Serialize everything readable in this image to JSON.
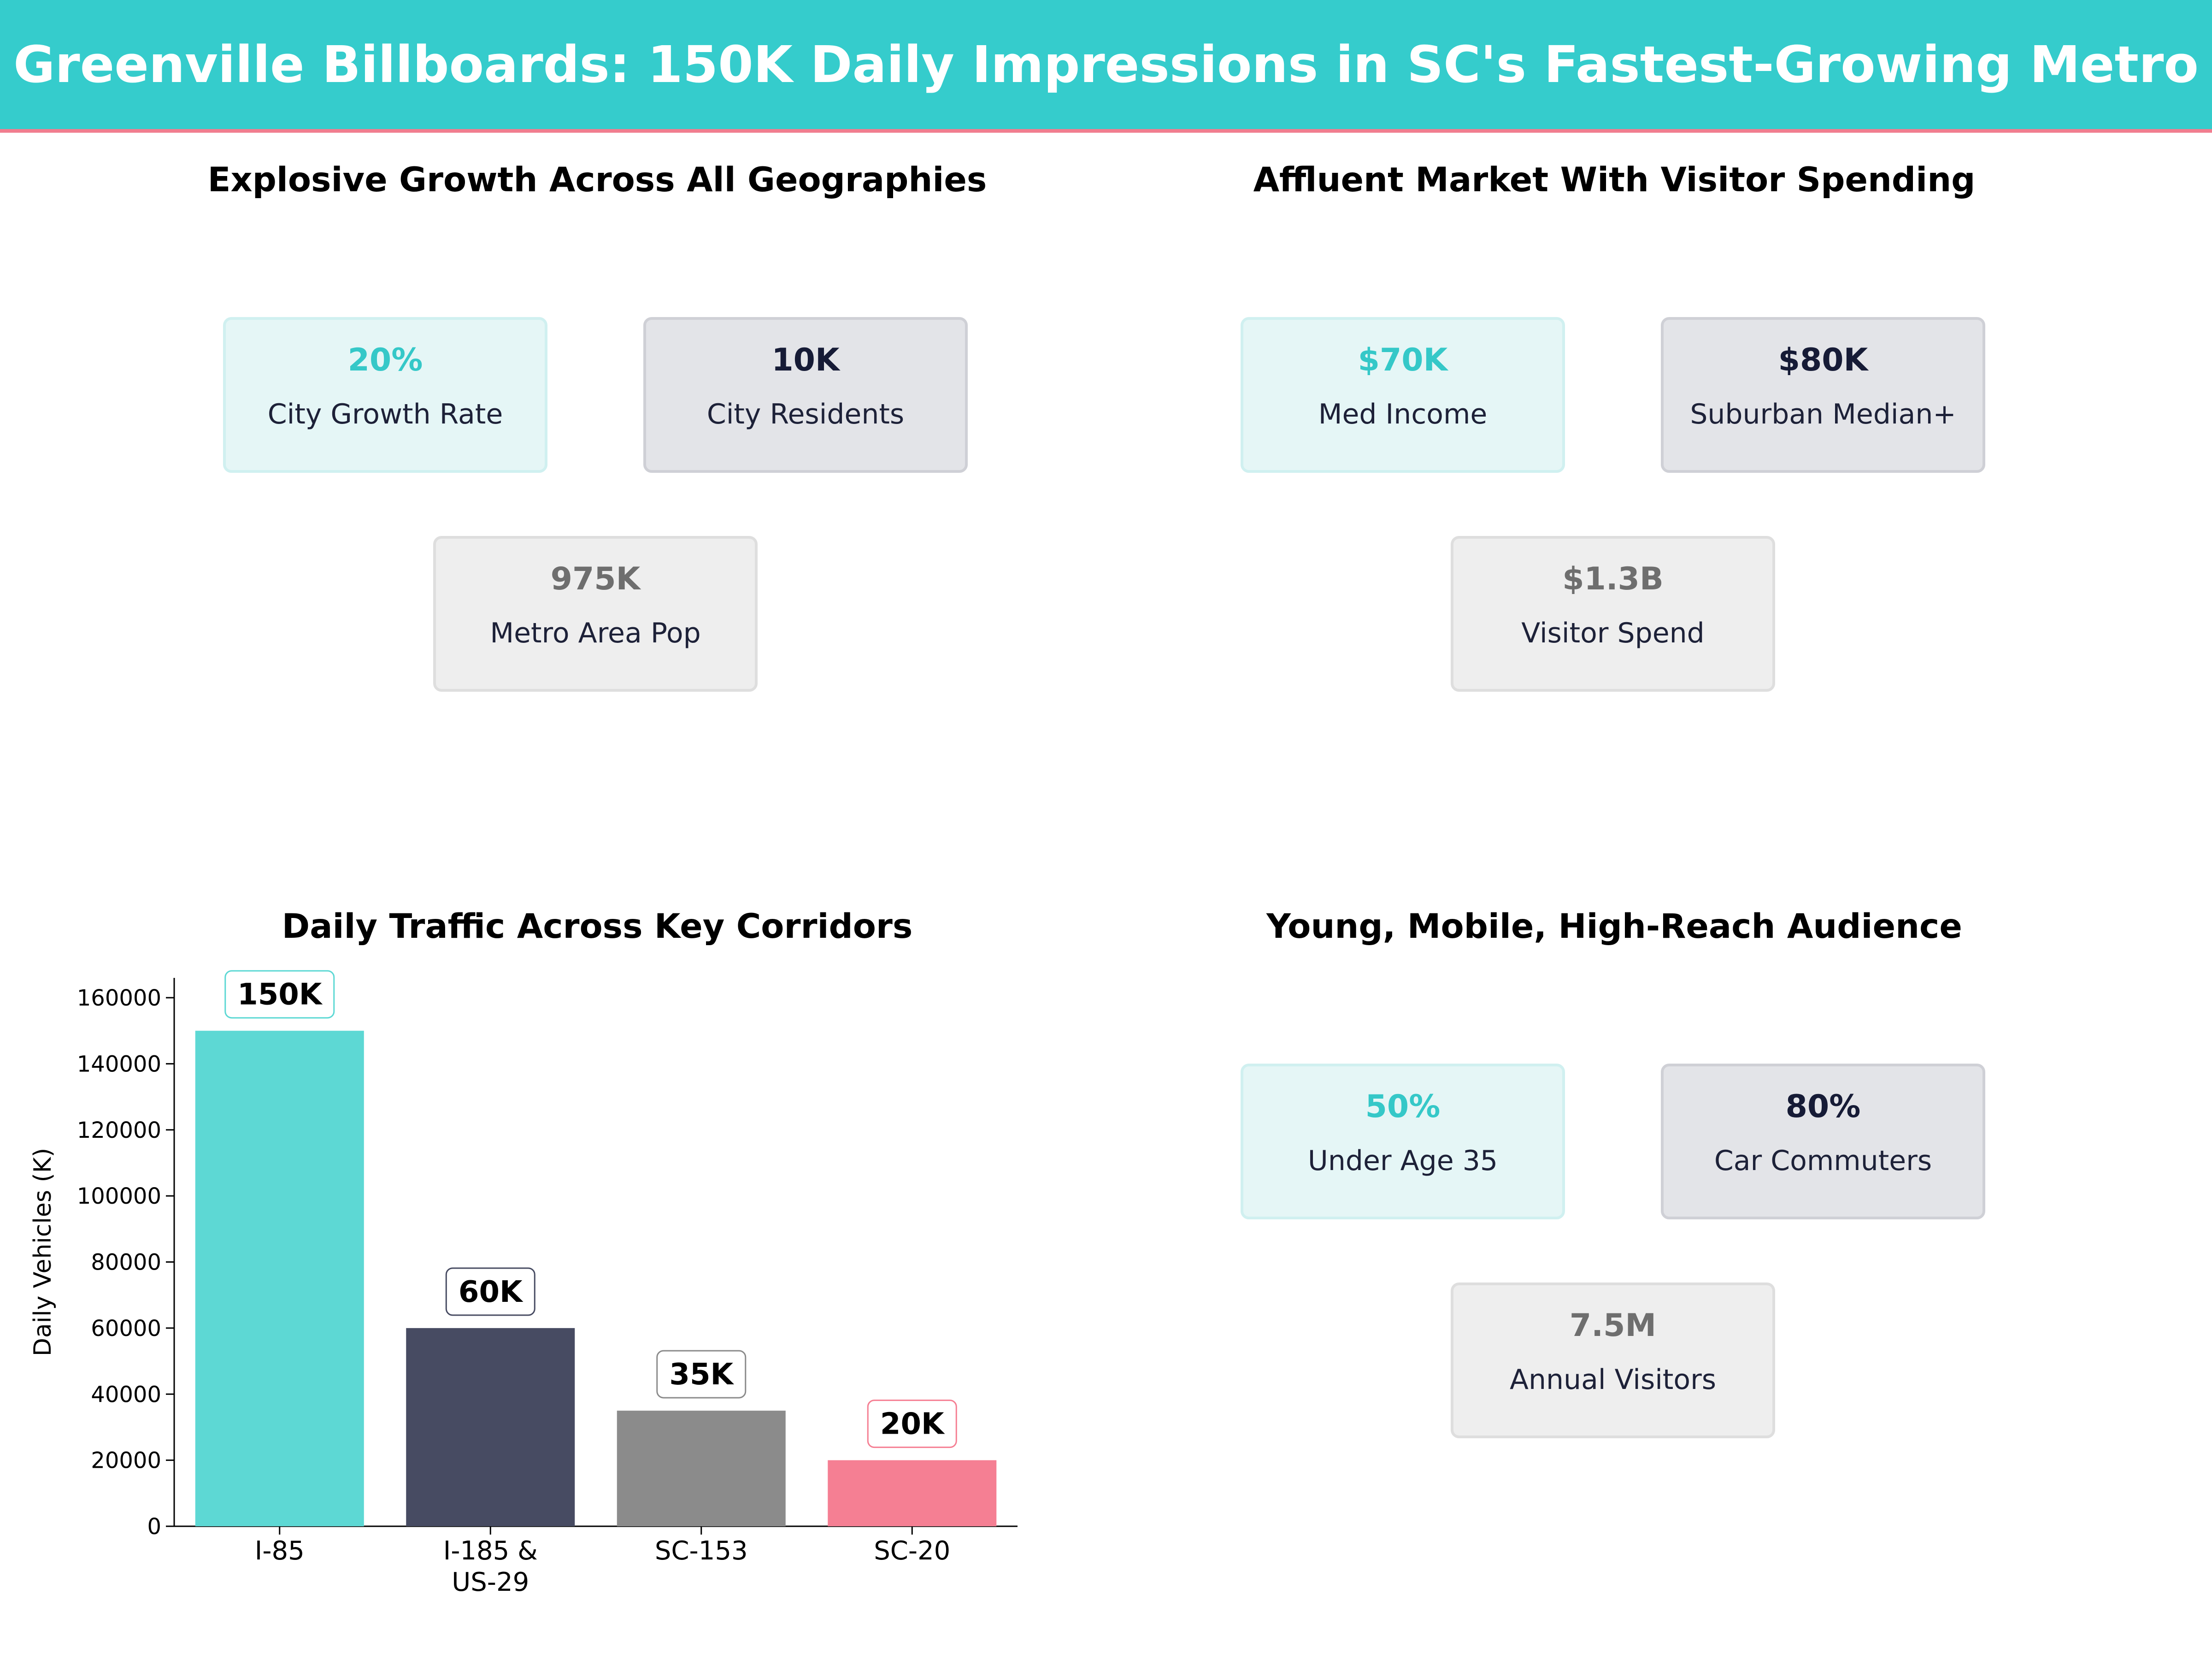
{
  "header": {
    "title": "Greenville Billboards: 150K Daily Impressions in SC's Fastest-Growing Metro"
  },
  "panels": {
    "growth": {
      "title": "Explosive Growth Across All Geographies",
      "cards": [
        {
          "value": "20%",
          "label": "City Growth Rate"
        },
        {
          "value": "10K",
          "label": "City Residents"
        },
        {
          "value": "975K",
          "label": "Metro Area Pop"
        }
      ]
    },
    "affluent": {
      "title": "Affluent Market With Visitor Spending",
      "cards": [
        {
          "value": "$70K",
          "label": "Med Income"
        },
        {
          "value": "$80K",
          "label": "Suburban Median+"
        },
        {
          "value": "$1.3B",
          "label": "Visitor Spend"
        }
      ]
    },
    "traffic": {
      "title": "Daily Traffic Across Key Corridors"
    },
    "audience": {
      "title": "Young, Mobile, High-Reach Audience",
      "cards": [
        {
          "value": "50%",
          "label": "Under Age 35"
        },
        {
          "value": "80%",
          "label": "Car Commuters"
        },
        {
          "value": "7.5M",
          "label": "Annual Visitors"
        }
      ]
    }
  },
  "chart_data": {
    "type": "bar",
    "title": "Daily Traffic Across Key Corridors",
    "xlabel": "",
    "ylabel": "Daily Vehicles (K)",
    "categories": [
      "I-85",
      "I-185 &\nUS-29",
      "SC-153",
      "SC-20"
    ],
    "values": [
      150000,
      60000,
      35000,
      20000
    ],
    "data_labels": [
      "150K",
      "60K",
      "35K",
      "20K"
    ],
    "bar_colors": [
      "#5dd8d4",
      "#474b62",
      "#8b8b8b",
      "#f57f93"
    ],
    "ylim": [
      0,
      166000
    ],
    "yticks": [
      0,
      20000,
      40000,
      60000,
      80000,
      100000,
      120000,
      140000,
      160000
    ],
    "grid": false
  }
}
